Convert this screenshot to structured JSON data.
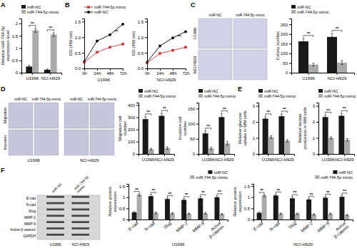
{
  "chart_data": [
    {
      "type": "bar",
      "title": "A",
      "categories": [
        "U1996",
        "NCI-H929"
      ],
      "series": [
        {
          "name": "miR-NC",
          "color": "#1a1a1a",
          "values": [
            0.25,
            0.12
          ],
          "errors": [
            0.05,
            0.03
          ]
        },
        {
          "name": "miR-744-5p mimic",
          "color": "#aaaaaa",
          "values": [
            1.72,
            1.55
          ],
          "errors": [
            0.08,
            0.07
          ]
        }
      ],
      "ylabel": "Relative miR-744-5p\nexpression level",
      "ylim": [
        0,
        2.2
      ],
      "yticks": [
        0,
        0.5,
        1,
        1.5,
        2
      ],
      "legend": "upper left",
      "annotation": "**"
    },
    {
      "type": "line",
      "title": "B",
      "x": [
        0,
        24,
        48,
        72
      ],
      "xlim": [
        0,
        72
      ],
      "xticks": [
        {
          "value": 0,
          "label": "0h"
        },
        {
          "value": 24,
          "label": "24h"
        },
        {
          "value": 48,
          "label": "48h"
        },
        {
          "value": 72,
          "label": "72h"
        }
      ],
      "series": [
        {
          "name": "miR-NC",
          "color": "#000000",
          "marker": "circle",
          "values": [
            0.22,
            0.88,
            1.08,
            1.42
          ]
        },
        {
          "name": "miR-744-5p mimic",
          "color": "#cc3333",
          "marker": "square",
          "values": [
            0.2,
            0.52,
            0.68,
            0.78
          ]
        }
      ],
      "xlabel": "U1996",
      "ylabel": "OD (450 nm)",
      "ylim": [
        0,
        1.6
      ],
      "yticks": [
        {
          "value": 0,
          "label": "0.0"
        },
        0.5,
        {
          "value": 1,
          "label": "1.0"
        },
        1.5
      ],
      "legend": "upper left",
      "annotation": "**"
    },
    {
      "type": "line",
      "x": [
        0,
        24,
        48,
        72
      ],
      "xlim": [
        0,
        72
      ],
      "xticks": [
        {
          "value": 0,
          "label": "0h"
        },
        {
          "value": 24,
          "label": "24h"
        },
        {
          "value": 48,
          "label": "48h"
        },
        {
          "value": 72,
          "label": "72h"
        }
      ],
      "series": [
        {
          "name": "miR-NC",
          "color": "#000000",
          "marker": "circle",
          "values": [
            0.2,
            0.72,
            0.98,
            1.18
          ]
        },
        {
          "name": "miR-744-5p mimic",
          "color": "#cc3333",
          "marker": "square",
          "values": [
            0.18,
            0.48,
            0.58,
            0.68
          ]
        }
      ],
      "xlabel": "NCI-H929",
      "ylabel": "OD (450 nm)",
      "ylim": [
        0,
        1.6
      ],
      "yticks": [
        {
          "value": 0,
          "label": "0.0"
        },
        0.5,
        {
          "value": 1,
          "label": "1.0"
        },
        1.5
      ],
      "annotation": "**"
    },
    {
      "type": "image",
      "title": "C",
      "color": "#d0d3e8",
      "row_labels": [
        "U1996",
        "NCI-H929"
      ],
      "column_labels": [
        "miR-NC",
        "miR-744-5p mimic"
      ]
    },
    {
      "type": "bar",
      "categories": [
        "U1996",
        "NCI-H929"
      ],
      "series": [
        {
          "name": "miR-NC",
          "color": "#1a1a1a",
          "values": [
            162,
            185
          ],
          "errors": [
            15,
            18
          ]
        },
        {
          "name": "miR-744-5p mimic",
          "color": "#aaaaaa",
          "values": [
            42,
            52
          ],
          "errors": [
            8,
            10
          ]
        }
      ],
      "ylabel": "Colony number",
      "ylim": [
        0,
        280
      ],
      "yticks": [
        0,
        50,
        100,
        150,
        200,
        250
      ],
      "legend": "upper left",
      "annotation": "**"
    },
    {
      "type": "image",
      "title": "D",
      "color": "#c5c8dc",
      "row_labels": [
        "Migration",
        "Invasion"
      ],
      "column_labels": [
        "miR-NC",
        "miR-744-5p mimic",
        "miR-NC",
        "miR-744-5p mimic"
      ],
      "group_labels": [
        "U1996",
        "NCI-H929"
      ]
    },
    {
      "type": "bar",
      "categories": [
        "U1996",
        "NCI-H929"
      ],
      "series": [
        {
          "name": "miR-NC",
          "color": "#1a1a1a",
          "values": [
            285,
            312
          ],
          "errors": [
            20,
            22
          ]
        },
        {
          "name": "miR-744-5p mimic",
          "color": "#aaaaaa",
          "values": [
            38,
            48
          ],
          "errors": [
            8,
            10
          ]
        }
      ],
      "ylabel": "Migration cell\nnumber",
      "ylim": [
        0,
        420
      ],
      "yticks": [
        0,
        100,
        200,
        300,
        400
      ],
      "legend": "upper left",
      "annotation": "**"
    },
    {
      "type": "bar",
      "categories": [
        "U1996",
        "NCI-H929"
      ],
      "series": [
        {
          "name": "miR-NC",
          "color": "#1a1a1a",
          "values": [
            68,
            122
          ],
          "errors": [
            8,
            12
          ]
        },
        {
          "name": "miR-744-5p mimic",
          "color": "#aaaaaa",
          "values": [
            18,
            35
          ],
          "errors": [
            4,
            6
          ]
        }
      ],
      "ylabel": "Invasion cell\nnumber",
      "ylim": [
        0,
        170
      ],
      "yticks": [
        0,
        50,
        100,
        150
      ],
      "legend": "upper left",
      "annotation": "**"
    },
    {
      "type": "bar",
      "title": "E",
      "categories": [
        "U1996",
        "NCI-H929"
      ],
      "series": [
        {
          "name": "miR-NC",
          "color": "#1a1a1a",
          "values": [
            2.2,
            2.35
          ],
          "errors": [
            0.12,
            0.14
          ]
        },
        {
          "name": "miR-744-5p mimic",
          "color": "#aaaaaa",
          "values": [
            1.05,
            0.82
          ],
          "errors": [
            0.08,
            0.07
          ]
        }
      ],
      "ylabel": "Relative glucose\nuptake in MM cells",
      "ylim": [
        0,
        3.2
      ],
      "yticks": [
        0,
        1,
        2,
        3
      ],
      "legend": "upper left",
      "annotation": "**"
    },
    {
      "type": "bar",
      "categories": [
        "U1996",
        "NCI-H929"
      ],
      "series": [
        {
          "name": "miR-NC",
          "color": "#1a1a1a",
          "values": [
            2.3,
            2.38
          ],
          "errors": [
            0.13,
            0.15
          ]
        },
        {
          "name": "miR-744-5p mimic",
          "color": "#aaaaaa",
          "values": [
            1.0,
            0.88
          ],
          "errors": [
            0.07,
            0.08
          ]
        }
      ],
      "ylabel": "Relative lactate\nproduction in MM cells",
      "ylim": [
        0,
        3.2
      ],
      "yticks": [
        0,
        1,
        2,
        3
      ],
      "legend": "upper left",
      "annotation": "**"
    },
    {
      "type": "blot",
      "title": "F",
      "color": "#d8d8d8",
      "row_labels": [
        "E-cad",
        "N-cad",
        "Slug",
        "MMP-2",
        "MMP-9",
        "Active β-catenin",
        "GAPDH"
      ],
      "column_labels": [
        "miR-NC",
        "miR-744-5p\nmimic"
      ],
      "group_labels": [
        "U1996",
        "NCI-H929"
      ]
    },
    {
      "type": "bar",
      "categories": [
        "E-cad",
        "N-cad",
        "Slug",
        "MMP-2",
        "MMP-9",
        "Active\nβ-catenin"
      ],
      "series": [
        {
          "name": "miR-NC",
          "color": "#1a1a1a",
          "values": [
            0.32,
            1.05,
            0.92,
            0.88,
            0.95,
            1.0
          ],
          "errors": [
            0.04,
            0.08,
            0.07,
            0.06,
            0.08,
            0.07
          ]
        },
        {
          "name": "miR-744-5p mimic",
          "color": "#aaaaaa",
          "values": [
            1.12,
            0.3,
            0.28,
            0.26,
            0.28,
            0.24
          ],
          "errors": [
            0.06,
            0.04,
            0.03,
            0.03,
            0.04,
            0.03
          ]
        }
      ],
      "xlabel": "U1996",
      "ylabel": "Relative protein\nexpression",
      "ylim": [
        0,
        1.6
      ],
      "yticks": [
        0,
        0.5,
        1,
        1.5
      ],
      "legend": "upper right",
      "annotation": "**"
    },
    {
      "type": "bar",
      "categories": [
        "E-cad",
        "N-cad",
        "Slug",
        "MMP-2",
        "MMP-9",
        "Active\nβ-catenin"
      ],
      "series": [
        {
          "name": "miR-NC",
          "color": "#1a1a1a",
          "values": [
            0.3,
            1.08,
            0.95,
            0.9,
            0.98,
            1.02
          ],
          "errors": [
            0.04,
            0.07,
            0.08,
            0.06,
            0.07,
            0.08
          ]
        },
        {
          "name": "miR-744-5p mimic",
          "color": "#aaaaaa",
          "values": [
            1.08,
            0.26,
            0.26,
            0.23,
            0.26,
            0.2
          ],
          "errors": [
            0.05,
            0.03,
            0.03,
            0.03,
            0.03,
            0.03
          ]
        }
      ],
      "xlabel": "NCI-H929",
      "ylabel": "Relative protein\nexpression",
      "ylim": [
        0,
        1.6
      ],
      "yticks": [
        0,
        0.5,
        1,
        1.5
      ],
      "legend": "upper right",
      "annotation": "**"
    }
  ]
}
